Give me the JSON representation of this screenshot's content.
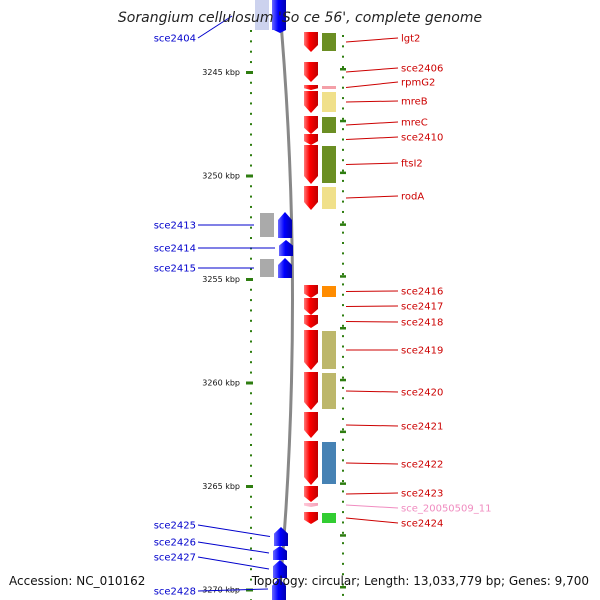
{
  "title": "Sorangium cellulosum 'So ce 56', complete genome",
  "footer": {
    "accession": "Accession: NC_010162",
    "summary": "Topology: circular; Length: 13,033,779 bp; Genes: 9,700"
  },
  "colors": {
    "forward_gene": "#ef0000",
    "reverse_gene": "#0000ee",
    "forward_label": "#cc0000",
    "reverse_label": "#0000cc",
    "pseudo_label": "#f08cc0",
    "backbone": "#888888",
    "tick": "#2e7d10"
  },
  "scale": {
    "ticks": [
      {
        "label": "3245 kbp",
        "kbp": 3245
      },
      {
        "label": "3250 kbp",
        "kbp": 3250
      },
      {
        "label": "3255 kbp",
        "kbp": 3255
      },
      {
        "label": "3260 kbp",
        "kbp": 3260
      },
      {
        "label": "3265 kbp",
        "kbp": 3265
      },
      {
        "label": "3270 kbp",
        "kbp": 3270
      }
    ]
  },
  "genes": [
    {
      "name": "sce2404",
      "strand": "reverse",
      "cog": "#ccd2ee"
    },
    {
      "name": "lgt2",
      "strand": "forward",
      "cog": "#6b8e23"
    },
    {
      "name": "sce2406",
      "strand": "forward",
      "cog": ""
    },
    {
      "name": "rpmG2",
      "strand": "forward",
      "cog": "#f4a0a8"
    },
    {
      "name": "mreB",
      "strand": "forward",
      "cog": "#f0e08a"
    },
    {
      "name": "mreC",
      "strand": "forward",
      "cog": "#6b8e23"
    },
    {
      "name": "sce2410",
      "strand": "forward",
      "cog": ""
    },
    {
      "name": "ftsI2",
      "strand": "forward",
      "cog": "#6b8e23"
    },
    {
      "name": "rodA",
      "strand": "forward",
      "cog": "#f0e08a"
    },
    {
      "name": "sce2413",
      "strand": "reverse",
      "cog": "#aaaaaa"
    },
    {
      "name": "sce2414",
      "strand": "reverse",
      "cog": ""
    },
    {
      "name": "sce2415",
      "strand": "reverse",
      "cog": "#aaaaaa"
    },
    {
      "name": "sce2416",
      "strand": "forward",
      "cog": "#ff8c00"
    },
    {
      "name": "sce2417",
      "strand": "forward",
      "cog": ""
    },
    {
      "name": "sce2418",
      "strand": "forward",
      "cog": ""
    },
    {
      "name": "sce2419",
      "strand": "forward",
      "cog": "#bdb76b"
    },
    {
      "name": "sce2420",
      "strand": "forward",
      "cog": "#bdb76b"
    },
    {
      "name": "sce2421",
      "strand": "forward",
      "cog": ""
    },
    {
      "name": "sce2422",
      "strand": "forward",
      "cog": "#4682b4"
    },
    {
      "name": "sce2423",
      "strand": "forward",
      "cog": ""
    },
    {
      "name": "sce_20050509_11",
      "strand": "forward",
      "cog": "",
      "pseudo": true
    },
    {
      "name": "sce2424",
      "strand": "forward",
      "cog": "#32cd32"
    },
    {
      "name": "sce2425",
      "strand": "reverse",
      "cog": ""
    },
    {
      "name": "sce2426",
      "strand": "reverse",
      "cog": ""
    },
    {
      "name": "sce2427",
      "strand": "reverse",
      "cog": ""
    },
    {
      "name": "sce2428",
      "strand": "reverse",
      "cog": ""
    }
  ]
}
